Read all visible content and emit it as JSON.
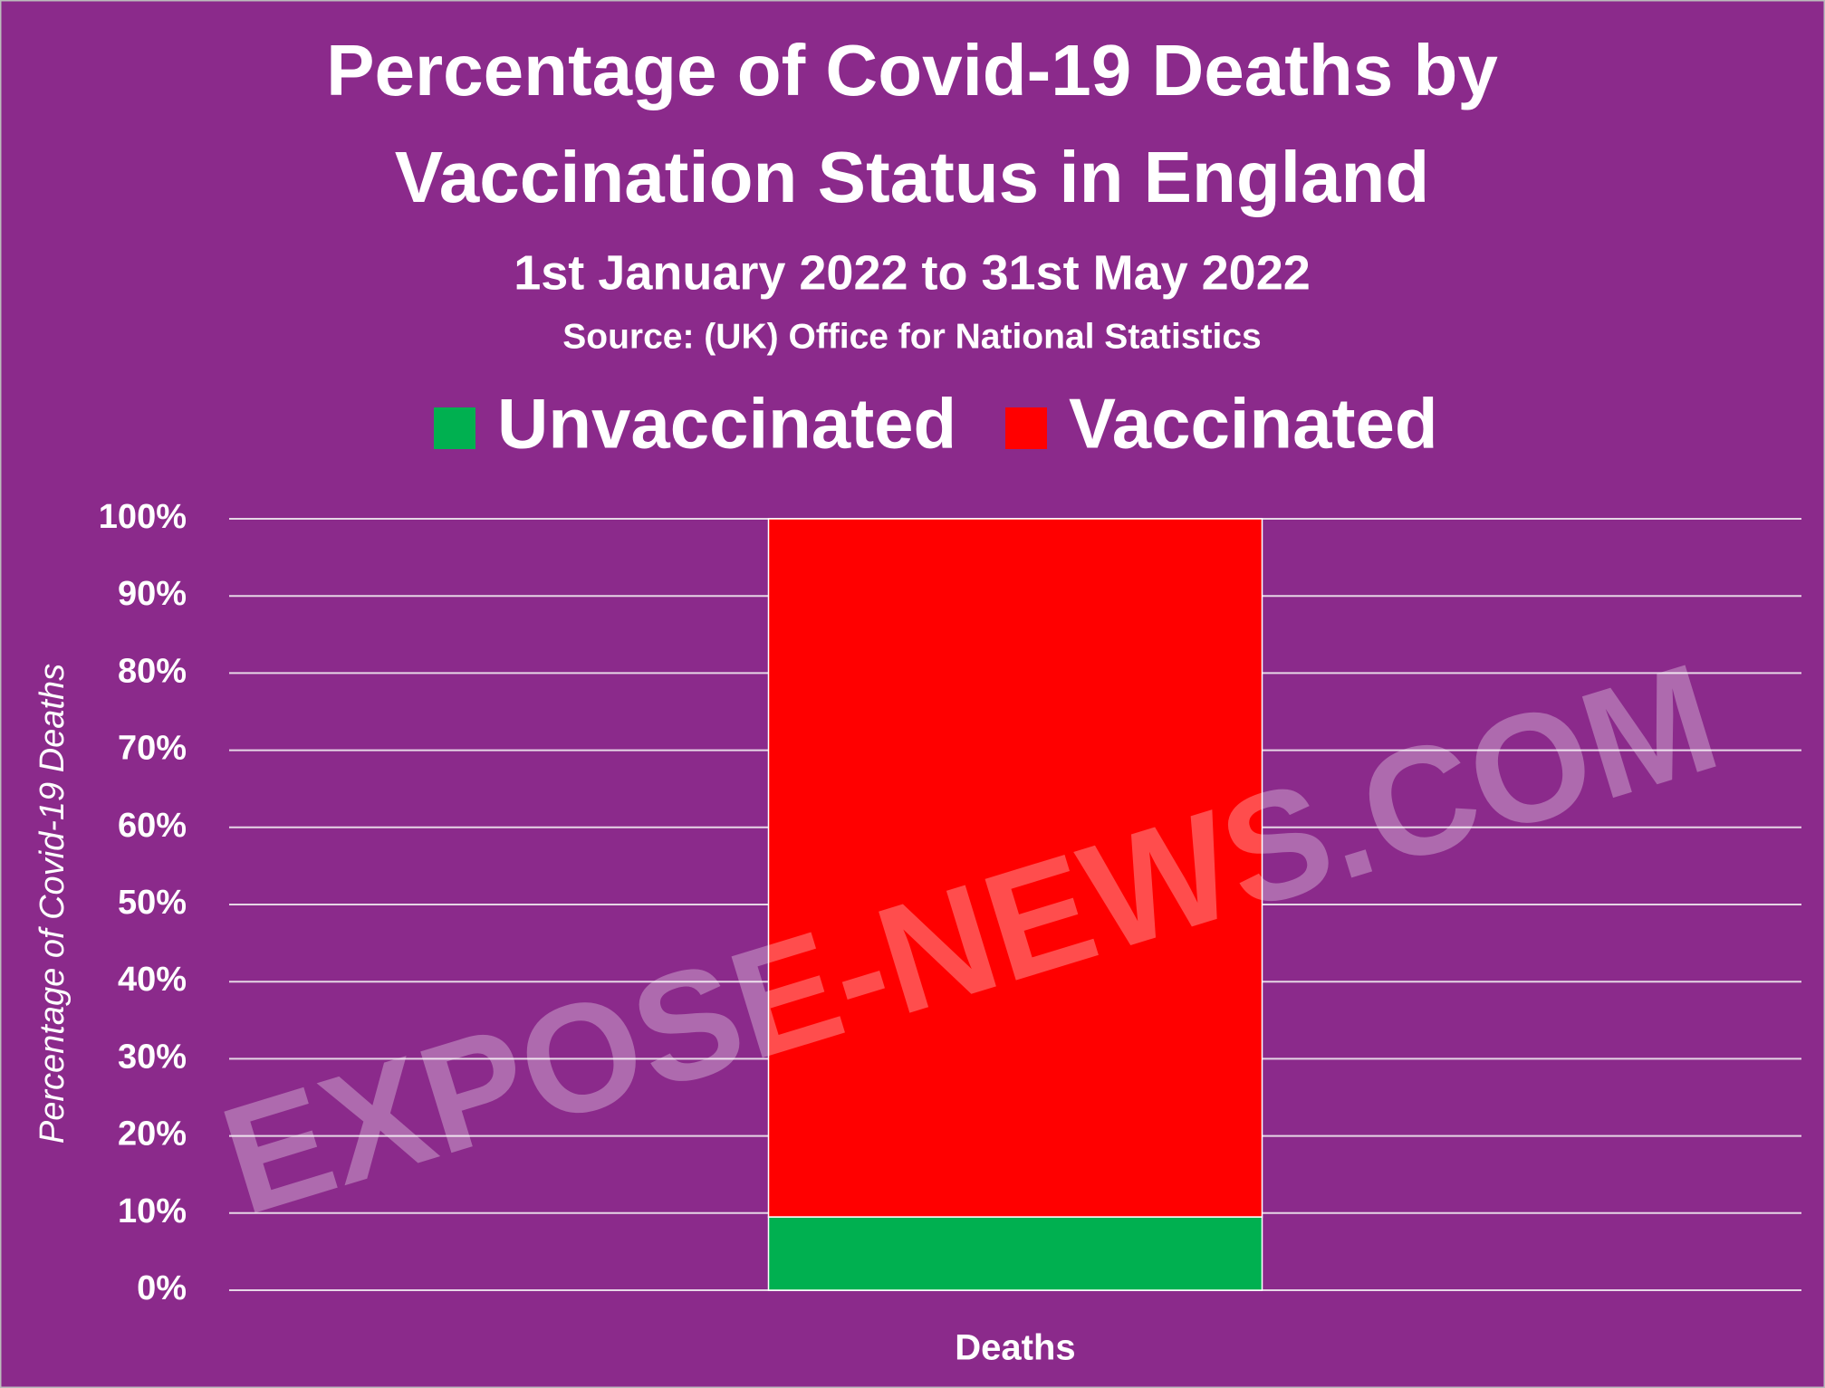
{
  "chart_data": {
    "type": "stacked_bar",
    "title": [
      "Percentage of Covid-19 Deaths by",
      "Vaccination Status in England"
    ],
    "subtitle": "1st January 2022 to 31st May 2022",
    "source": "Source:  (UK) Office for National Statistics",
    "y_label": "Percentage of Covid-19 Deaths",
    "watermark": "EXPOSE-NEWS.COM",
    "categories": [
      "Deaths"
    ],
    "series": [
      {
        "name": "Unvaccinated",
        "color": "#00b050",
        "values": [
          9.5
        ]
      },
      {
        "name": "Vaccinated",
        "color": "#ff0000",
        "values": [
          90.5
        ]
      }
    ],
    "ylim": [
      0,
      100
    ],
    "yticks": [
      {
        "value": 0,
        "label": "0%"
      },
      {
        "value": 10,
        "label": "10%"
      },
      {
        "value": 20,
        "label": "20%"
      },
      {
        "value": 30,
        "label": "30%"
      },
      {
        "value": 40,
        "label": "40%"
      },
      {
        "value": 50,
        "label": "50%"
      },
      {
        "value": 60,
        "label": "60%"
      },
      {
        "value": 70,
        "label": "70%"
      },
      {
        "value": 80,
        "label": "80%"
      },
      {
        "value": 90,
        "label": "90%"
      },
      {
        "value": 100,
        "label": "100%"
      }
    ],
    "grid": true
  }
}
